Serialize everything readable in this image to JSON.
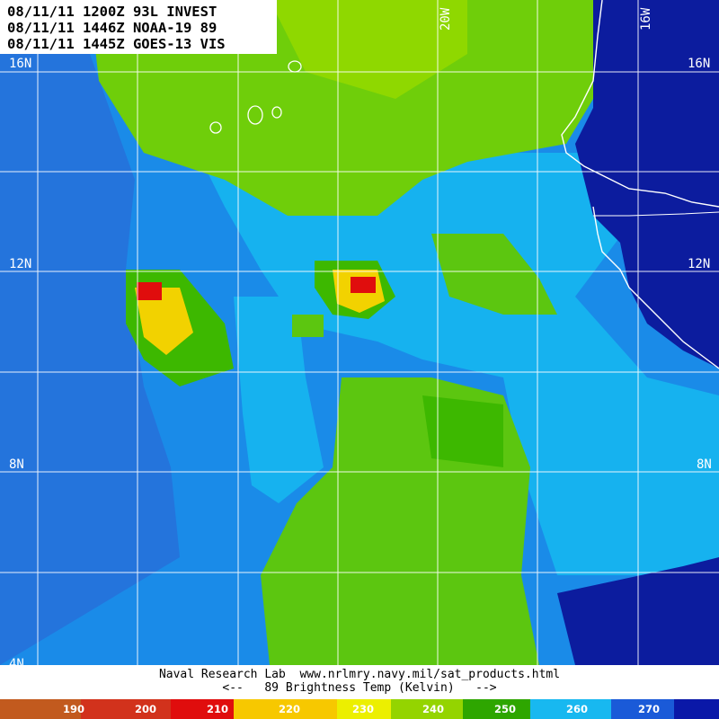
{
  "info": {
    "line1": "08/11/11 1200Z 93L INVEST",
    "line2": "08/11/11 1446Z NOAA-19 89",
    "line3": "08/11/11 1445Z GOES-13 VIS"
  },
  "grid": {
    "lat_labels": [
      "16N",
      "12N",
      "8N",
      "4N"
    ],
    "lon_labels": [
      "20W",
      "16W"
    ]
  },
  "credits": {
    "line1": "Naval Research Lab  www.nrlmry.navy.mil/sat_products.html",
    "line2": "<--   89 Brightness Temp (Kelvin)   -->"
  },
  "colorbar": {
    "ticks": [
      "190",
      "200",
      "210",
      "220",
      "230",
      "240",
      "250",
      "260",
      "270"
    ],
    "colors": [
      "#c25a1e",
      "#d2321c",
      "#e00d0d",
      "#f7c800",
      "#ecef00",
      "#94d400",
      "#2ea600",
      "#18b8f0",
      "#1a5ad8",
      "#0a18a8"
    ]
  },
  "colors": {
    "green_high": "#7dd400",
    "green_mid": "#3db800",
    "cyan": "#1ab6f0",
    "blue": "#1f72dc",
    "deep_blue": "#0c1c9e",
    "red": "#e00d0d",
    "yellow": "#f7e000",
    "coast": "#ffffff"
  }
}
